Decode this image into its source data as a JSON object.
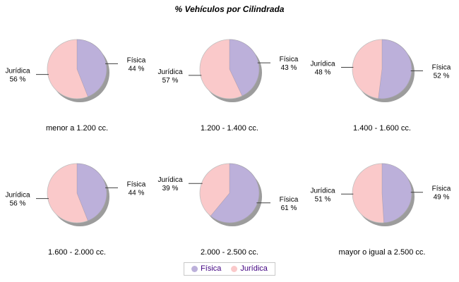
{
  "title": "% Vehículos por Cilindrada",
  "colors": {
    "fisica": "#bcb0da",
    "juridica": "#fac9ca",
    "shadow": "#9c9c9c",
    "outline": "#c0c0c0",
    "leader_line": "#404040",
    "label_text": "#000000",
    "legend_text": "#400080",
    "legend_border": "#c8c8c8",
    "background": "#ffffff"
  },
  "legend": {
    "items": [
      {
        "label": "Física",
        "color": "#bcb0da"
      },
      {
        "label": "Jurídica",
        "color": "#fac9ca"
      }
    ]
  },
  "chart_data": {
    "type": "pie",
    "title": "% Vehículos por Cilindrada",
    "series_labels": [
      "Física",
      "Jurídica"
    ],
    "value_suffix": " %",
    "legend_position": "bottom",
    "layout": "2x3 grid of pies",
    "charts": [
      {
        "category": "menor a 1.200 cc.",
        "fisica_pct": 44,
        "juridica_pct": 56
      },
      {
        "category": "1.200 - 1.400 cc.",
        "fisica_pct": 43,
        "juridica_pct": 57
      },
      {
        "category": "1.400 - 1.600 cc.",
        "fisica_pct": 52,
        "juridica_pct": 48
      },
      {
        "category": "1.600 - 2.000 cc.",
        "fisica_pct": 44,
        "juridica_pct": 56
      },
      {
        "category": "2.000 - 2.500 cc.",
        "fisica_pct": 61,
        "juridica_pct": 39
      },
      {
        "category": "mayor o igual a 2.500 cc.",
        "fisica_pct": 49,
        "juridica_pct": 51
      }
    ]
  }
}
